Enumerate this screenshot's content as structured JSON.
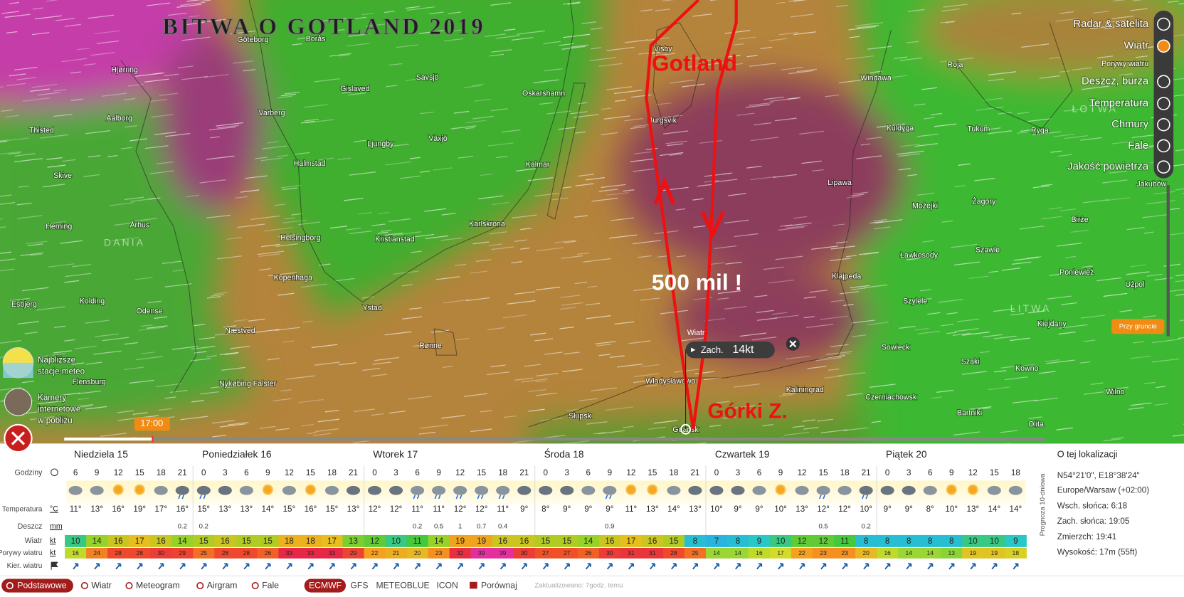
{
  "map": {
    "title": "BITWA O GOTLAND 2019",
    "annotations": {
      "island": "Gotland",
      "distance": "500 mil !",
      "start": "Górki Z."
    },
    "cities": [
      "Göteborg",
      "Borås",
      "Visby",
      "Hjørring",
      "Gislaved",
      "Savsjö",
      "Oskarshamn",
      "Varberg",
      "Windawa",
      "Roja",
      "Aalborg",
      "Thisted",
      "Ljungby",
      "Växjö",
      "Burgsvik",
      "Kuldyga",
      "Tukum",
      "Ryga",
      "Halmstad",
      "Kalmar",
      "Skive",
      "Lipawa",
      "Jakubów",
      "Herning",
      "Århus",
      "Karlskrona",
      "Możejki",
      "Żagory",
      "Birże",
      "DANIA",
      "Helsingborg",
      "Kristianstad",
      "Szawle",
      "Ławkosody",
      "Kopenhaga",
      "Klajpeda",
      "Poniewież",
      "Użpol",
      "Esbjerg",
      "Kolding",
      "Odense",
      "Ystad",
      "Szylele",
      "LITWA",
      "Næstved",
      "Kiejdany",
      "Rønne",
      "Sowieck",
      "Szaki",
      "Kowno",
      "Flensburg",
      "Nykøbing Falster",
      "Władysławowo",
      "Kaliningrad",
      "Wilno",
      "Czerniachowsk",
      "Bartniki",
      "Słupsk",
      "Olita",
      "Gdańsk",
      "ŁOTWA"
    ],
    "popup": {
      "label": "Wiatr",
      "direction": "Zach.",
      "speed": "14kt"
    },
    "time": "17:00",
    "layers": [
      "Radar & satelita",
      "Wiatr",
      "Porywy wiatru",
      "Deszcz, burza",
      "Temperatura",
      "Chmury",
      "Fale",
      "Jakość powietrza"
    ],
    "ground_button": "Przy gruncie",
    "side_links": [
      "Najbliższe stacje meteo",
      "Kamery internetowe w pobliżu"
    ]
  },
  "forecast": {
    "days": [
      "Niedziela 15",
      "Poniedziałek 16",
      "Wtorek 17",
      "Środa 18",
      "Czwartek 19",
      "Piątek 20"
    ],
    "row_labels": {
      "hours": "Godziny",
      "temperature": "Temperatura",
      "temperature_unit": "°C",
      "rain": "Deszcz",
      "rain_unit": "mm",
      "wind": "Wiatr",
      "wind_unit": "kt",
      "gusts": "Porywy wiatru",
      "gusts_unit": "kt",
      "direction": "Kier. wiatru"
    },
    "hours": [
      6,
      9,
      12,
      15,
      18,
      21,
      0,
      3,
      6,
      9,
      12,
      15,
      18,
      21,
      0,
      3,
      6,
      9,
      12,
      15,
      18,
      21,
      0,
      3,
      6,
      9,
      12,
      15,
      18,
      21,
      0,
      3,
      6,
      9,
      12,
      15,
      18,
      21,
      0,
      3,
      6,
      9,
      12,
      15,
      18
    ],
    "temperature": [
      "11°",
      "13°",
      "16°",
      "19°",
      "17°",
      "16°",
      "15°",
      "13°",
      "13°",
      "14°",
      "15°",
      "16°",
      "15°",
      "13°",
      "12°",
      "12°",
      "11°",
      "11°",
      "12°",
      "12°",
      "11°",
      "9°",
      "8°",
      "9°",
      "9°",
      "9°",
      "11°",
      "13°",
      "14°",
      "13°",
      "10°",
      "9°",
      "9°",
      "10°",
      "13°",
      "12°",
      "12°",
      "10°",
      "9°",
      "9°",
      "8°",
      "10°",
      "13°",
      "14°",
      "14°"
    ],
    "rain": [
      null,
      null,
      null,
      null,
      null,
      0.2,
      0.2,
      null,
      null,
      null,
      null,
      null,
      null,
      null,
      null,
      null,
      0.2,
      0.5,
      1,
      0.7,
      0.4,
      null,
      null,
      null,
      null,
      0.9,
      null,
      null,
      null,
      null,
      null,
      null,
      null,
      null,
      null,
      0.5,
      null,
      0.2,
      null,
      null,
      null,
      null,
      null,
      null,
      null
    ],
    "wind": [
      10,
      14,
      16,
      17,
      16,
      14,
      15,
      16,
      15,
      15,
      18,
      18,
      17,
      13,
      12,
      10,
      11,
      14,
      19,
      19,
      16,
      16,
      15,
      15,
      14,
      16,
      17,
      16,
      15,
      8,
      7,
      8,
      9,
      10,
      12,
      12,
      11,
      8,
      8,
      8,
      8,
      8,
      10,
      10,
      9
    ],
    "gusts": [
      16,
      24,
      28,
      28,
      30,
      29,
      25,
      28,
      28,
      26,
      33,
      33,
      33,
      29,
      22,
      21,
      20,
      23,
      32,
      39,
      39,
      30,
      27,
      27,
      26,
      30,
      31,
      31,
      28,
      25,
      14,
      14,
      16,
      17,
      22,
      23,
      23,
      20,
      16,
      14,
      14,
      13,
      19,
      19,
      18
    ],
    "side_tab": "Prognoza 10-dniowa",
    "location": {
      "heading": "O tej lokalizacji",
      "coords": "N54°21'0\", E18°38'24\"",
      "timezone": "Europe/Warsaw (+02:00)",
      "sunrise": "Wsch. słońca: 6:18",
      "sunset": "Zach. słońca: 19:05",
      "dusk": "Zmierzch: 19:41",
      "altitude": "Wysokość: 17m (55ft)"
    }
  },
  "toolbar": {
    "views": [
      "Podstawowe",
      "Wiatr",
      "Meteogram",
      "Airgram",
      "Fale"
    ],
    "models": [
      "ECMWF",
      "GFS",
      "METEOBLUE",
      "ICON"
    ],
    "compare": "Porównaj",
    "updated": "Zaktualizowano: 7godz. temu"
  }
}
